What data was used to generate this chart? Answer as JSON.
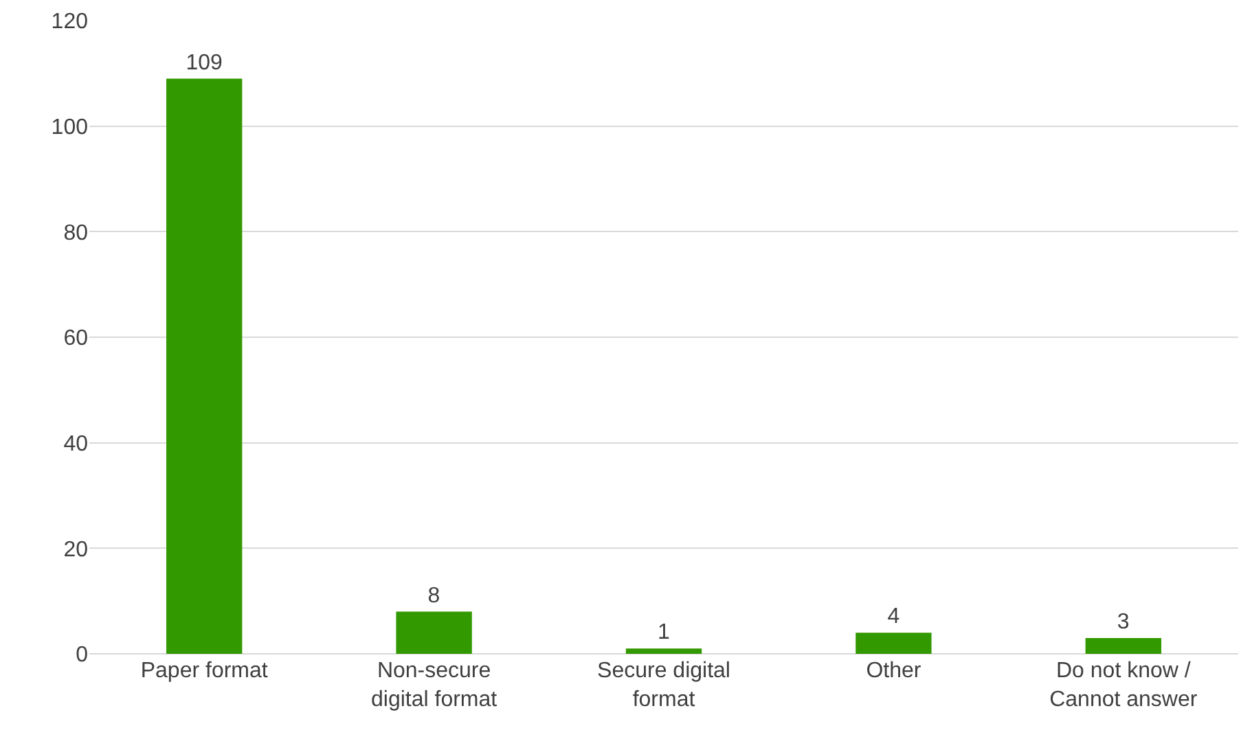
{
  "chart_data": {
    "type": "bar",
    "categories": [
      "Paper format",
      "Non-secure digital format",
      "Secure digital format",
      "Other",
      "Do not know / Cannot answer"
    ],
    "values": [
      109,
      8,
      1,
      4,
      3
    ],
    "color": "#339900",
    "ylim": [
      0,
      120
    ],
    "yticks": [
      0,
      20,
      40,
      60,
      80,
      100,
      120
    ],
    "grid": "y",
    "data_labels": true
  }
}
